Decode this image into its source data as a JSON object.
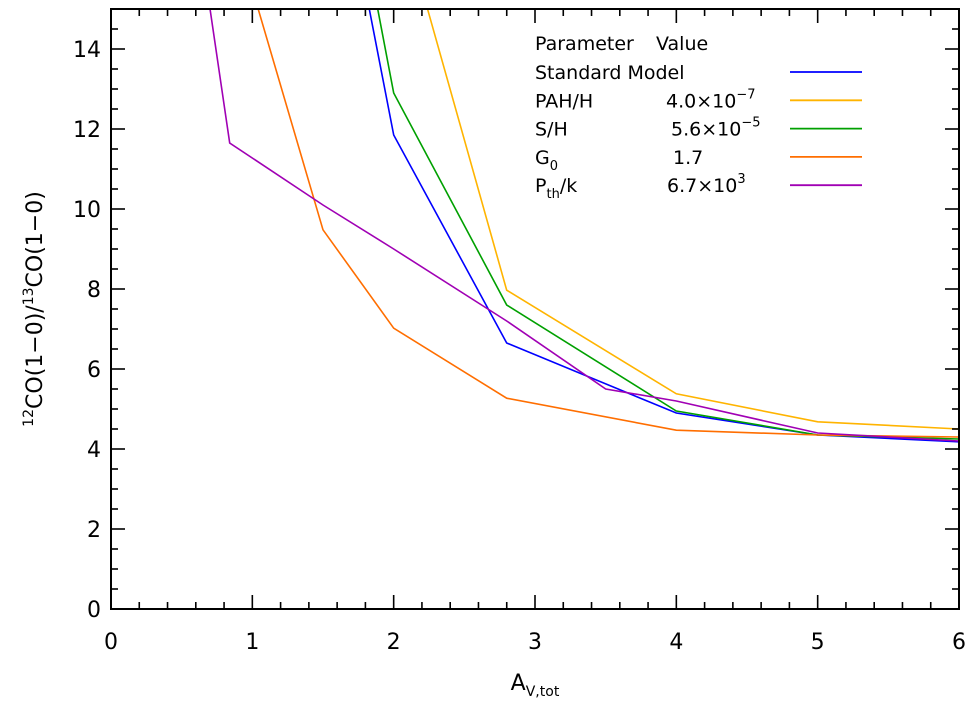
{
  "chart_data": {
    "type": "line",
    "xlabel": {
      "main": "A",
      "sub": "V,tot"
    },
    "ylabel": {
      "sup1": "12",
      "main1": "CO(1−0)/",
      "sup2": "13",
      "main2": "CO(1−0)"
    },
    "xlim": [
      0,
      6
    ],
    "ylim": [
      0,
      15
    ],
    "xticks": [
      0,
      1,
      2,
      3,
      4,
      5,
      6
    ],
    "xtick_labels": [
      "0",
      "1",
      "2",
      "3",
      "4",
      "5",
      "6"
    ],
    "yticks": [
      0,
      2,
      4,
      6,
      8,
      10,
      12,
      14
    ],
    "ytick_labels": [
      "0",
      "2",
      "4",
      "6",
      "8",
      "10",
      "12",
      "14"
    ],
    "grid": false,
    "legend_position": "top-right",
    "legend_header": {
      "param": "Parameter",
      "value": "Value"
    },
    "series": [
      {
        "name": "Standard Model",
        "value_text": "",
        "color": "#0000ff",
        "x": [
          1.8,
          2.0,
          2.8,
          4.0,
          5.0,
          6.0
        ],
        "y": [
          15.5,
          11.85,
          6.65,
          4.9,
          4.35,
          4.18
        ]
      },
      {
        "name": "PAH/H",
        "value_text": "4.0×10",
        "value_exp": "−7",
        "color": "#ffb400",
        "x": [
          2.2,
          2.8,
          4.0,
          5.0,
          6.0
        ],
        "y": [
          15.5,
          7.97,
          5.38,
          4.68,
          4.5
        ]
      },
      {
        "name": "S/H",
        "value_text": "5.6×10",
        "value_exp": "−5",
        "color": "#00a000",
        "x": [
          1.86,
          2.0,
          2.8,
          4.0,
          5.0,
          6.0
        ],
        "y": [
          15.5,
          12.9,
          7.6,
          4.95,
          4.35,
          4.25
        ]
      },
      {
        "name": "G",
        "name_sub": "0",
        "value_text": "1.7",
        "color": "#ff6e00",
        "x": [
          1.0,
          1.5,
          2.0,
          2.8,
          4.0,
          5.0,
          6.0
        ],
        "y": [
          15.5,
          9.48,
          7.02,
          5.27,
          4.47,
          4.35,
          4.3
        ]
      },
      {
        "name": "P",
        "name_sub": "th",
        "name_suffix": "/k",
        "value_text": "6.7×10",
        "value_exp": "3",
        "color": "#a000b4",
        "x": [
          0.68,
          0.84,
          1.5,
          2.0,
          2.8,
          3.5,
          4.0,
          5.0,
          6.0
        ],
        "y": [
          15.5,
          11.65,
          10.1,
          9.0,
          7.2,
          5.5,
          5.2,
          4.4,
          4.2
        ]
      }
    ]
  }
}
